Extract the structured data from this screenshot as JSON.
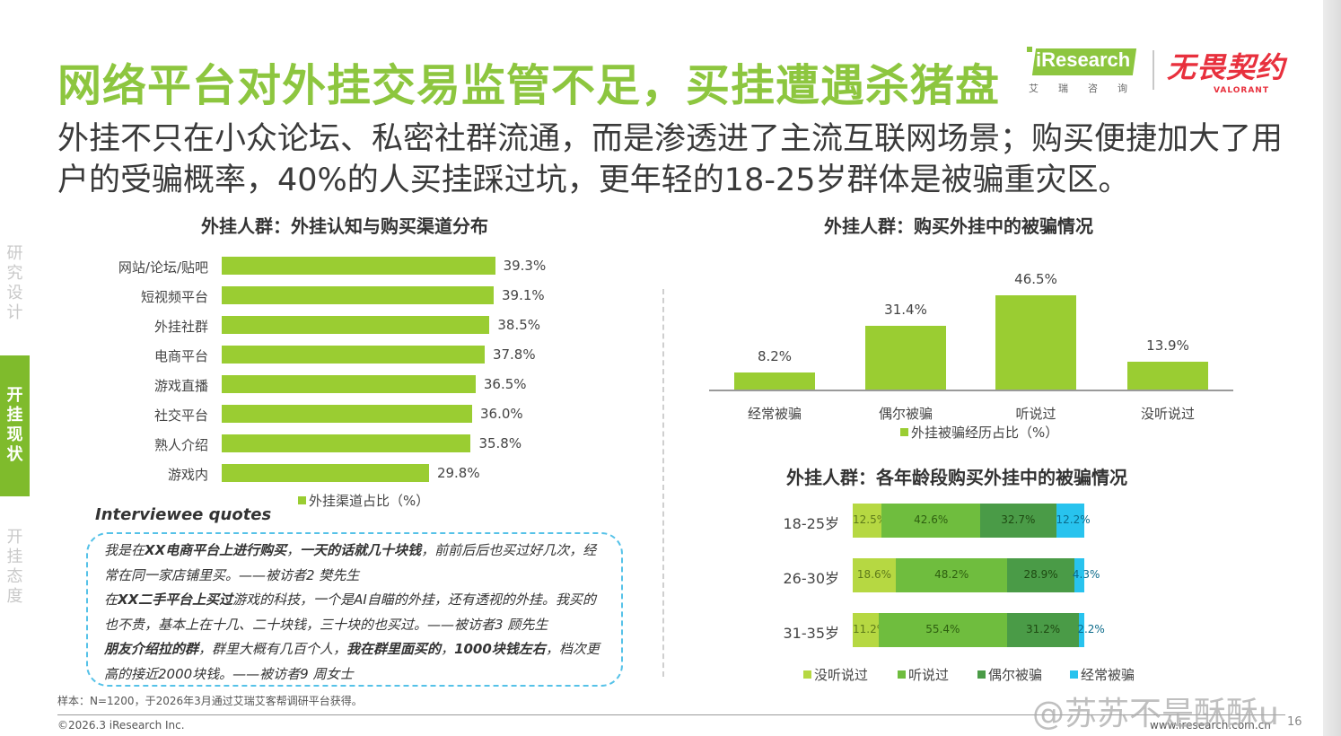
{
  "header": {
    "title": "网络平台对外挂交易监管不足，买挂遭遇杀猪盘",
    "subtitle": "外挂不只在小众论坛、私密社群流通，而是渗透进了主流互联网场景；购买便捷加大了用户的受骗概率，40%的人买挂踩过坑，更年轻的18-25岁群体是被骗重灾区。"
  },
  "logos": {
    "iresearch_en": "iResearch",
    "iresearch_cn": "艾瑞咨询",
    "valorant_cn": "无畏契约",
    "valorant_en": "VALORANT"
  },
  "sidebar": [
    {
      "label": "研究设计",
      "chars": [
        "研",
        "究",
        "设",
        "计"
      ],
      "active": false
    },
    {
      "label": "开挂现状",
      "chars": [
        "开",
        "挂",
        "现",
        "状"
      ],
      "active": true
    },
    {
      "label": "开挂态度",
      "chars": [
        "开",
        "挂",
        "态",
        "度"
      ],
      "active": false
    }
  ],
  "colors": {
    "title_green": "#8dc63f",
    "bar_green": "#9acd32",
    "heard": "#6fbd3e",
    "occasional": "#4a9b47",
    "frequent": "#28c3ee",
    "accent_red": "#e8303d"
  },
  "chart_data": [
    {
      "type": "bar",
      "orientation": "horizontal",
      "title": "外挂人群：外挂认知与购买渠道分布",
      "categories": [
        "网站/论坛/贴吧",
        "短视频平台",
        "外挂社群",
        "电商平台",
        "游戏直播",
        "社交平台",
        "熟人介绍",
        "游戏内"
      ],
      "values": [
        39.3,
        39.1,
        38.5,
        37.8,
        36.5,
        36.0,
        35.8,
        29.8
      ],
      "value_labels": [
        "39.3%",
        "39.1%",
        "38.5%",
        "37.8%",
        "36.5%",
        "36.0%",
        "35.8%",
        "29.8%"
      ],
      "legend": "外挂渠道占比（%）",
      "unit": "%"
    },
    {
      "type": "bar",
      "orientation": "vertical",
      "title": "外挂人群：购买外挂中的被骗情况",
      "categories": [
        "经常被骗",
        "偶尔被骗",
        "听说过",
        "没听说过"
      ],
      "values": [
        8.2,
        31.4,
        46.5,
        13.9
      ],
      "value_labels": [
        "8.2%",
        "31.4%",
        "46.5%",
        "13.9%"
      ],
      "legend": "外挂被骗经历占比（%）",
      "unit": "%"
    },
    {
      "type": "bar",
      "orientation": "horizontal",
      "stacked": true,
      "title": "外挂人群：各年龄段购买外挂中的被骗情况",
      "categories": [
        "18-25岁",
        "26-30岁",
        "31-35岁"
      ],
      "series": [
        {
          "name": "没听说过",
          "values": [
            12.5,
            18.6,
            11.2
          ],
          "labels": [
            "12.5%",
            "18.6%",
            "11.2%"
          ]
        },
        {
          "name": "听说过",
          "values": [
            42.6,
            48.2,
            55.4
          ],
          "labels": [
            "42.6%",
            "48.2%",
            "55.4%"
          ]
        },
        {
          "name": "偶尔被骗",
          "values": [
            32.7,
            28.9,
            31.2
          ],
          "labels": [
            "32.7%",
            "28.9%",
            "31.2%"
          ]
        },
        {
          "name": "经常被骗",
          "values": [
            12.2,
            4.3,
            2.2
          ],
          "labels": [
            "12.2%",
            "4.3%",
            "2.2%"
          ]
        }
      ],
      "unit": "%"
    }
  ],
  "quotes": {
    "title": "Interviewee quotes",
    "q1": {
      "a": "我是在",
      "b": "XX电商平台上进行购买",
      "c": "，",
      "d": "一天的话就几十块钱",
      "e": "，前前后后也买过好几次，经常在同一家店铺里买。——被访者2 樊先生"
    },
    "q2": {
      "a": "在",
      "b": "XX二手平台上买过",
      "c": "游戏的科技，一个是AI自瞄的外挂，还有透视的外挂。我买的也不贵，基本上在十几、二十块钱，三十块的也买过。——被访者3 顾先生"
    },
    "q3": {
      "a": "朋友介绍拉的群",
      "b": "，群里大概有几百个人，",
      "c": "我在群里面买的",
      "d": "，",
      "e": "1000块钱左右",
      "f": "，档次更高的接近2000块钱。——被访者9 周女士"
    }
  },
  "footer": {
    "note": "样本：N=1200，于2026年3月通过艾瑞艾客帮调研平台获得。",
    "copyright": "©2026.3 iResearch Inc.",
    "website": "www.iresearch.com.cn",
    "page": "16",
    "watermark": "@苏苏不是酥酥u"
  }
}
